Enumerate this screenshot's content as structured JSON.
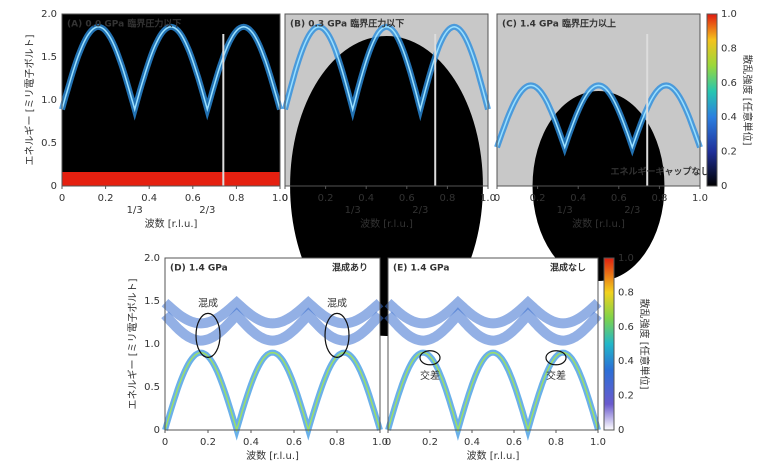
{
  "top_row": {
    "panels": [
      {
        "label": "(A) 0.0 GPa 臨界圧力以下"
      },
      {
        "label": "(B) 0.3 GPa 臨界圧力以下"
      },
      {
        "label": "(C) 1.4 GPa 臨界圧力以上",
        "note": "エネルギーギャップなし"
      }
    ],
    "y_label": "エネルギー [ミリ電子ボルト]",
    "y_ticks": [
      "0",
      "0.5",
      "1.0",
      "1.5",
      "2.0"
    ],
    "x_label": "波数 [r.l.u.]",
    "x_ticks": [
      "0",
      "0.2",
      "0.4",
      "0.6",
      "0.8",
      "1.0"
    ],
    "fractions": [
      "1/3",
      "2/3"
    ],
    "colorbar": {
      "label": "散乱強度 [任意単位]",
      "ticks": [
        "0",
        "0.2",
        "0.4",
        "0.6",
        "0.8",
        "1.0"
      ]
    }
  },
  "bottom_row": {
    "panels": [
      {
        "label": "(D) 1.4 GPa",
        "tag": "混成あり",
        "marks": [
          "混成",
          "混成"
        ]
      },
      {
        "label": "(E) 1.4 GPa",
        "tag": "混成なし",
        "marks": [
          "交差",
          "交差"
        ]
      }
    ],
    "y_label": "エネルギー [ミリ電子ボルト]",
    "y_ticks": [
      "0",
      "0.5",
      "1.0",
      "1.5",
      "2.0"
    ],
    "x_label": "波数 [r.l.u.]",
    "x_ticks": [
      "0",
      "0.2",
      "0.4",
      "0.6",
      "0.8",
      "1.0"
    ],
    "colorbar": {
      "label": "散乱強度 [任意単位]",
      "ticks": [
        "0",
        "0.2",
        "0.4",
        "0.6",
        "0.8",
        "1.0"
      ]
    }
  }
}
